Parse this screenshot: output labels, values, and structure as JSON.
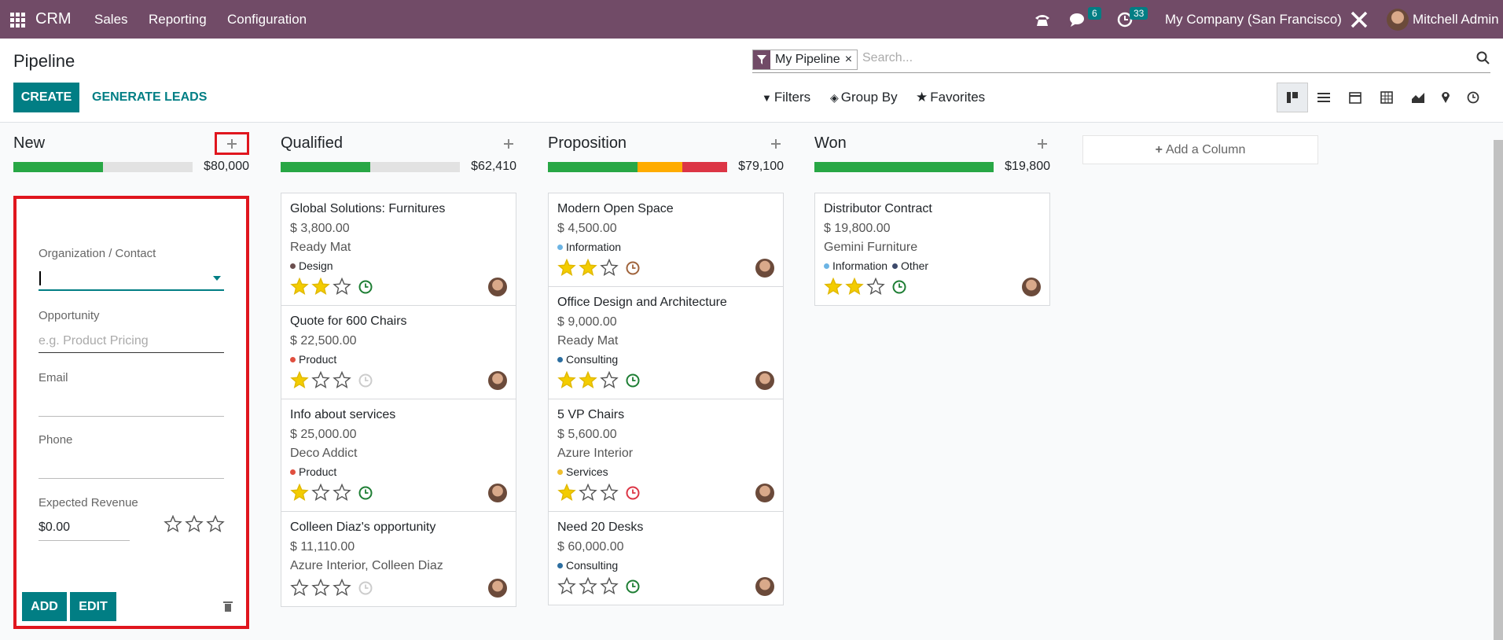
{
  "navbar": {
    "app": "CRM",
    "menu": [
      "Sales",
      "Reporting",
      "Configuration"
    ],
    "messages_count": 6,
    "activities_count": 33,
    "company": "My Company (San Francisco)",
    "user": "Mitchell Admin"
  },
  "control_panel": {
    "title": "Pipeline",
    "facet": "My Pipeline",
    "search_placeholder": "Search...",
    "buttons": [
      "CREATE",
      "GENERATE LEADS"
    ],
    "search_options": [
      "Filters",
      "Group By",
      "Favorites"
    ]
  },
  "quick_create": {
    "fields": [
      "Organization / Contact",
      "Opportunity",
      "Email",
      "Phone",
      "Expected Revenue"
    ],
    "opportunity_placeholder": "e.g. Product Pricing",
    "revenue": "$0.00",
    "priority": 0,
    "buttons": [
      "ADD",
      "EDIT"
    ]
  },
  "add_column": "Add a Column",
  "columns": [
    {
      "name": "New",
      "total": "$80,000",
      "progress": [
        {
          "color": "#28a745",
          "share": 50
        }
      ],
      "cards": []
    },
    {
      "name": "Qualified",
      "total": "$62,410",
      "progress": [
        {
          "color": "#28a745",
          "share": 50
        }
      ],
      "cards": [
        {
          "title": "Global Solutions: Furnitures",
          "amount": "$ 3,800.00",
          "company": "Ready Mat",
          "tags": [
            {
              "name": "Design",
              "color": "#6b4f4f"
            }
          ],
          "priority": 2,
          "activity_color": "#1e7e34"
        },
        {
          "title": "Quote for 600 Chairs",
          "amount": "$ 22,500.00",
          "tags": [
            {
              "name": "Product",
              "color": "#e04f3f"
            }
          ],
          "priority": 1,
          "activity_color": "#cccccc"
        },
        {
          "title": "Info about services",
          "amount": "$ 25,000.00",
          "company": "Deco Addict",
          "tags": [
            {
              "name": "Product",
              "color": "#e04f3f"
            }
          ],
          "priority": 1,
          "activity_color": "#1e7e34"
        },
        {
          "title": "Colleen Diaz's opportunity",
          "amount": "$ 11,110.00",
          "company": "Azure Interior, Colleen Diaz",
          "tags": [],
          "priority": 0,
          "activity_color": "#cccccc"
        }
      ]
    },
    {
      "name": "Proposition",
      "total": "$79,100",
      "progress": [
        {
          "color": "#28a745",
          "share": 50
        },
        {
          "color": "#ffac00",
          "share": 25
        },
        {
          "color": "#dc3545",
          "share": 25
        }
      ],
      "cards": [
        {
          "title": "Modern Open Space",
          "amount": "$ 4,500.00",
          "tags": [
            {
              "name": "Information",
              "color": "#6cb4e4"
            }
          ],
          "priority": 2,
          "activity_color": "#a0643c"
        },
        {
          "title": "Office Design and Architecture",
          "amount": "$ 9,000.00",
          "company": "Ready Mat",
          "tags": [
            {
              "name": "Consulting",
              "color": "#2c6ea0"
            }
          ],
          "priority": 2,
          "activity_color": "#1e7e34"
        },
        {
          "title": "5 VP Chairs",
          "amount": "$ 5,600.00",
          "company": "Azure Interior",
          "tags": [
            {
              "name": "Services",
              "color": "#f0c030"
            }
          ],
          "priority": 1,
          "activity_color": "#dc3545"
        },
        {
          "title": "Need 20 Desks",
          "amount": "$ 60,000.00",
          "tags": [
            {
              "name": "Consulting",
              "color": "#2c6ea0"
            }
          ],
          "priority": 0,
          "activity_color": "#1e7e34"
        }
      ]
    },
    {
      "name": "Won",
      "total": "$19,800",
      "progress": [
        {
          "color": "#28a745",
          "share": 100
        }
      ],
      "cards": [
        {
          "title": "Distributor Contract",
          "amount": "$ 19,800.00",
          "company": "Gemini Furniture",
          "tags": [
            {
              "name": "Information",
              "color": "#6cb4e4"
            },
            {
              "name": "Other",
              "color": "#3d4a6b"
            }
          ],
          "priority": 2,
          "activity_color": "#1e7e34"
        }
      ]
    }
  ]
}
